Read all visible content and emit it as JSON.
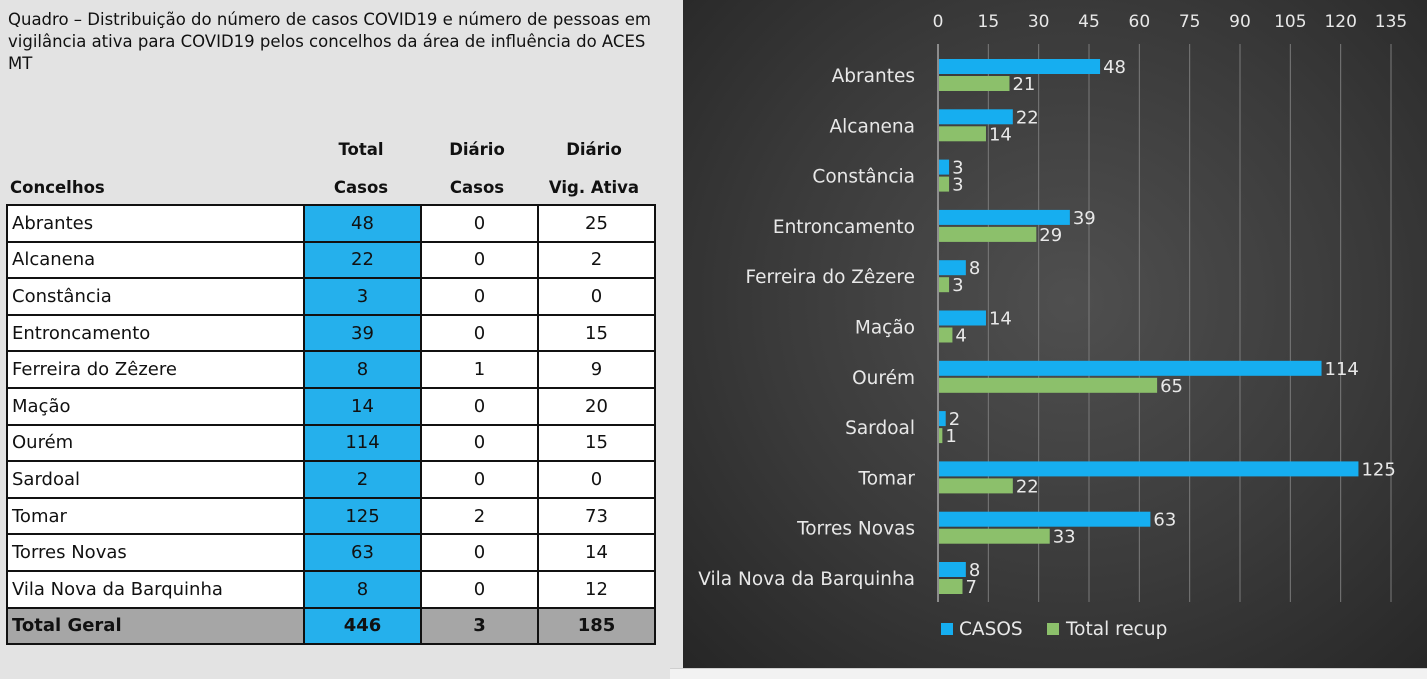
{
  "caption": "Quadro – Distribuição do número de casos COVID19 e número de pessoas em vigilância ativa para COVID19 pelos concelhos da área de influência do ACES MT",
  "table": {
    "headers": {
      "concelhos": "Concelhos",
      "total_line1": "Total",
      "total_line2": "Casos",
      "diario_line1": "Diário",
      "diario_line2": "Casos",
      "vig_line1": "Diário",
      "vig_line2": "Vig. Ativa"
    },
    "rows": [
      {
        "name": "Abrantes",
        "total": "48",
        "diario": "0",
        "vig": "25"
      },
      {
        "name": "Alcanena",
        "total": "22",
        "diario": "0",
        "vig": "2"
      },
      {
        "name": "Constância",
        "total": "3",
        "diario": "0",
        "vig": "0"
      },
      {
        "name": "Entroncamento",
        "total": "39",
        "diario": "0",
        "vig": "15"
      },
      {
        "name": "Ferreira do Zêzere",
        "total": "8",
        "diario": "1",
        "vig": "9"
      },
      {
        "name": "Mação",
        "total": "14",
        "diario": "0",
        "vig": "20"
      },
      {
        "name": "Ourém",
        "total": "114",
        "diario": "0",
        "vig": "15"
      },
      {
        "name": "Sardoal",
        "total": "2",
        "diario": "0",
        "vig": "0"
      },
      {
        "name": "Tomar",
        "total": "125",
        "diario": "2",
        "vig": "73"
      },
      {
        "name": "Torres Novas",
        "total": "63",
        "diario": "0",
        "vig": "14"
      },
      {
        "name": "Vila Nova da Barquinha",
        "total": "8",
        "diario": "0",
        "vig": "12"
      }
    ],
    "total_row": {
      "name": "Total Geral",
      "total": "446",
      "diario": "3",
      "vig": "185"
    }
  },
  "colors": {
    "casos": "#16aef0",
    "recup": "#8cc06b",
    "chart_bg": "#3a3a3a",
    "table_blue": "#25b0ec",
    "total_row_bg": "#a6a6a6"
  },
  "chart_data": {
    "type": "bar",
    "orientation": "horizontal",
    "categories": [
      "Abrantes",
      "Alcanena",
      "Constância",
      "Entroncamento",
      "Ferreira do Zêzere",
      "Mação",
      "Ourém",
      "Sardoal",
      "Tomar",
      "Torres Novas",
      "Vila Nova da Barquinha"
    ],
    "series": [
      {
        "name": "CASOS",
        "values": [
          48,
          22,
          3,
          39,
          8,
          14,
          114,
          2,
          125,
          63,
          8
        ]
      },
      {
        "name": "Total recup",
        "values": [
          21,
          14,
          3,
          29,
          3,
          4,
          65,
          1,
          22,
          33,
          7
        ]
      }
    ],
    "xlim": [
      0,
      135
    ],
    "xticks": [
      0,
      15,
      30,
      45,
      60,
      75,
      90,
      105,
      120,
      135
    ],
    "x_axis_position": "top",
    "grid": true,
    "legend": "bottom",
    "data_labels": true
  }
}
